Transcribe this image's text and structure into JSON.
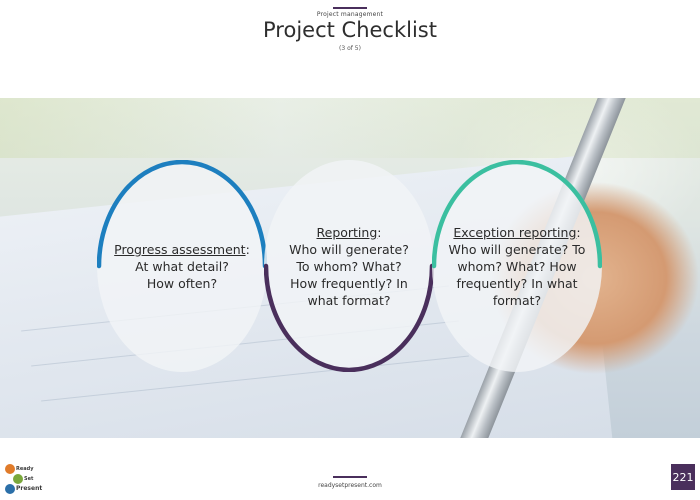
{
  "header": {
    "kicker": "Project management",
    "title": "Project Checklist",
    "subtitle": "(3 of 5)"
  },
  "circles": [
    {
      "heading": "Progress assessment",
      "suffix": ":",
      "lines": [
        "At what detail?",
        "How often?"
      ],
      "accent": "#1d7fbf"
    },
    {
      "heading": "Reporting",
      "suffix": ":",
      "lines": [
        "Who will generate?",
        "To whom? What?",
        "How frequently? In",
        "what format?"
      ],
      "accent": "#4a2f5c"
    },
    {
      "heading": "Exception reporting",
      "suffix": ":",
      "lines": [
        "Who will generate? To",
        "whom? What? How",
        "frequently? In what",
        "format?"
      ],
      "accent": "#3bbfa0"
    }
  ],
  "footer": {
    "url": "readysetpresent.com",
    "page_number": "221"
  },
  "logo": {
    "line1": "Ready",
    "line2": "Set",
    "line3": "Present"
  },
  "colors": {
    "brand_purple": "#4a2f5c",
    "blue_accent": "#1d7fbf",
    "teal_accent": "#3bbfa0"
  }
}
